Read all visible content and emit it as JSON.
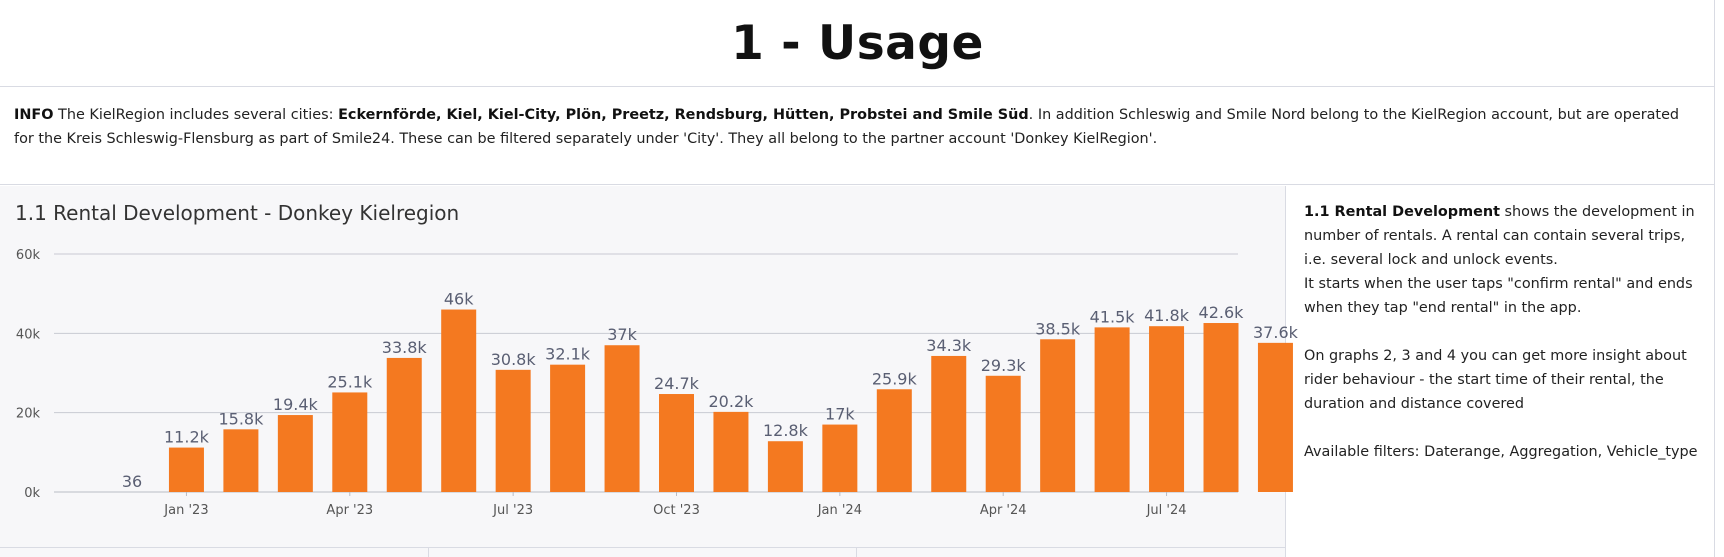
{
  "page": {
    "title": "1 - Usage"
  },
  "info": {
    "label": "INFO",
    "text1": "The KielRegion includes several cities: ",
    "cities": "Eckernförde, Kiel, Kiel-City, Plön, Preetz, Rendsburg, Hütten, Probstei and Smile Süd",
    "text2": ". In addition Schleswig and Smile Nord belong to the KielRegion account, but are operated for the Kreis Schleswig-Flensburg as part of Smile24. These can be filtered separately under 'City'. They all belong to the partner account 'Donkey KielRegion'."
  },
  "description": {
    "heading": "1.1 Rental Development",
    "p1": " shows the development in number of rentals. A rental can contain several trips, i.e. several lock and unlock events.",
    "p1b": "It starts when the user taps \"confirm rental\" and ends when they tap \"end rental\" in the app.",
    "p2": "On graphs 2, 3 and 4 you can get more insight about rider behaviour - the start time of their rental, the duration and distance covered",
    "p3": "Available filters: Daterange, Aggregation, Vehicle_type"
  },
  "chart_data": {
    "type": "bar",
    "title": "1.1 Rental Development - Donkey Kielregion",
    "bar_color": "#f47920",
    "ylim": [
      0,
      60000
    ],
    "yticks": [
      0,
      20000,
      40000,
      60000
    ],
    "ytick_labels": [
      "0k",
      "20k",
      "40k",
      "60k"
    ],
    "grid": true,
    "categories": [
      "2022-12",
      "2023-01",
      "2023-02",
      "2023-03",
      "2023-04",
      "2023-05",
      "2023-06",
      "2023-07",
      "2023-08",
      "2023-09",
      "2023-10",
      "2023-11",
      "2023-12",
      "2024-01",
      "2024-02",
      "2024-03",
      "2024-04",
      "2024-05",
      "2024-06",
      "2024-07",
      "2024-08",
      "2024-09"
    ],
    "values": [
      36,
      11200,
      15800,
      19400,
      25100,
      33800,
      46000,
      30800,
      32100,
      37000,
      24700,
      20200,
      12800,
      17000,
      25900,
      34300,
      29300,
      38500,
      41500,
      41800,
      42600,
      37600
    ],
    "labels": [
      "36",
      "11.2k",
      "15.8k",
      "19.4k",
      "25.1k",
      "33.8k",
      "46k",
      "30.8k",
      "32.1k",
      "37k",
      "24.7k",
      "20.2k",
      "12.8k",
      "17k",
      "25.9k",
      "34.3k",
      "29.3k",
      "38.5k",
      "41.5k",
      "41.8k",
      "42.6k",
      "37.6k"
    ],
    "xtick_positions": [
      1,
      4,
      7,
      10,
      13,
      16,
      19
    ],
    "xtick_labels": [
      "Jan '23",
      "Apr '23",
      "Jul '23",
      "Oct '23",
      "Jan '24",
      "Apr '24",
      "Jul '24"
    ]
  }
}
